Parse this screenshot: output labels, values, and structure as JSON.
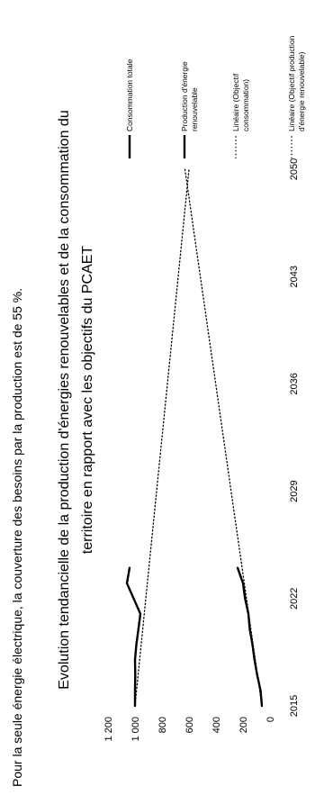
{
  "intro_text": "Pour la seule énergie électrique, la couverture des besoins par la production est de 55 %.",
  "chart_data": {
    "type": "line",
    "title_line1": "Evolution tendancielle de la production d'énergies renouvelables et de la consommation du",
    "title_line2": "territoire en rapport avec les objectifs du PCAET",
    "x_ticks": [
      "2015",
      "2022",
      "2029",
      "2036",
      "2043",
      "2050"
    ],
    "y_ticks": [
      "0",
      "200",
      "400",
      "600",
      "800",
      "1 000",
      "1 200"
    ],
    "xlim": [
      2015,
      2050
    ],
    "ylim": [
      0,
      1200
    ],
    "series": [
      {
        "name": "Consommation totale",
        "style": "solid",
        "color": "#000000",
        "x": [
          2015,
          2016,
          2017,
          2018,
          2019,
          2020,
          2021,
          2022,
          2023,
          2024
        ],
        "y": [
          1000,
          1000,
          998,
          1000,
          990,
          975,
          960,
          1010,
          1060,
          1040
        ]
      },
      {
        "name": "Production d'énergie renouvelable",
        "style": "solid",
        "color": "#000000",
        "x": [
          2015,
          2016,
          2017,
          2018,
          2019,
          2020,
          2021,
          2022,
          2023,
          2024
        ],
        "y": [
          60,
          70,
          95,
          115,
          130,
          150,
          160,
          185,
          200,
          240
        ]
      },
      {
        "name": "Linéaire (Objectif consommation)",
        "style": "dotted",
        "color": "#000000",
        "x": [
          2015,
          2050
        ],
        "y": [
          1000,
          600
        ]
      },
      {
        "name": "Linéaire (Objectif production d'énergie renouvelable)",
        "style": "dotted",
        "color": "#000000",
        "x": [
          2015,
          2050
        ],
        "y": [
          60,
          630
        ]
      }
    ],
    "legend": [
      {
        "line1": "Consommation totale",
        "line2": "",
        "style": "solid"
      },
      {
        "line1": "Production d'énergie",
        "line2": "renouvelable",
        "style": "solid"
      },
      {
        "line1": "Linéaire (Objectif",
        "line2": "consommation)",
        "style": "dotted"
      },
      {
        "line1": "Linéaire (Objectif production",
        "line2": "d'énergie renouvelable)",
        "style": "dotted"
      }
    ],
    "grid": false,
    "legend_position": "right"
  }
}
